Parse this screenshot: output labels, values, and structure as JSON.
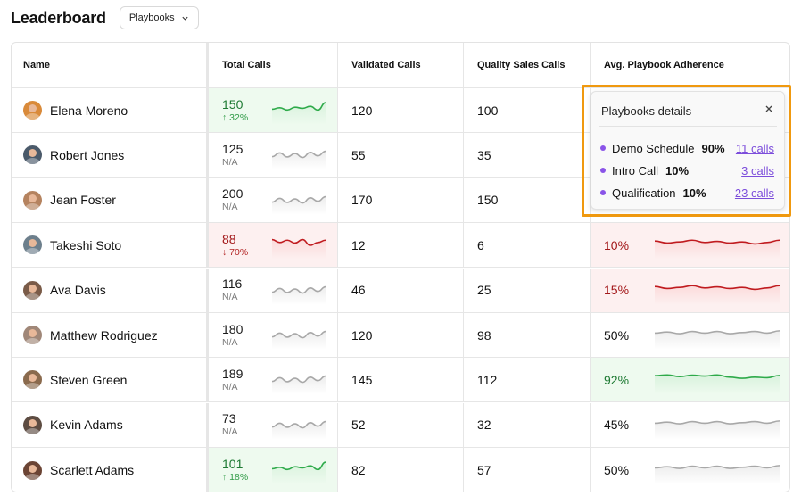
{
  "header": {
    "title": "Leaderboard",
    "dropdown_label": "Playbooks"
  },
  "table": {
    "columns": [
      "Name",
      "Total Calls",
      "Validated Calls",
      "Quality Sales Calls",
      "Avg. Playbook Adherence"
    ],
    "rows": [
      {
        "name": "Elena Moreno",
        "avatar_color": "#d98a3a",
        "total": "150",
        "total_sub": "↑ 32%",
        "total_status": "green",
        "validated": "120",
        "quality": "100",
        "adherence": "",
        "adh_status": "none"
      },
      {
        "name": "Robert Jones",
        "avatar_color": "#4b5a6a",
        "total": "125",
        "total_sub": "N/A",
        "total_status": "neutral",
        "validated": "55",
        "quality": "35",
        "adherence": "",
        "adh_status": "none"
      },
      {
        "name": "Jean Foster",
        "avatar_color": "#b5835f",
        "total": "200",
        "total_sub": "N/A",
        "total_status": "neutral",
        "validated": "170",
        "quality": "150",
        "adherence": "",
        "adh_status": "none"
      },
      {
        "name": "Takeshi Soto",
        "avatar_color": "#6d7f8c",
        "total": "88",
        "total_sub": "↓ 70%",
        "total_status": "red",
        "validated": "12",
        "quality": "6",
        "adherence": "10%",
        "adh_status": "red"
      },
      {
        "name": "Ava Davis",
        "avatar_color": "#7a5b48",
        "total": "116",
        "total_sub": "N/A",
        "total_status": "neutral",
        "validated": "46",
        "quality": "25",
        "adherence": "15%",
        "adh_status": "red"
      },
      {
        "name": "Matthew Rodriguez",
        "avatar_color": "#a08778",
        "total": "180",
        "total_sub": "N/A",
        "total_status": "neutral",
        "validated": "120",
        "quality": "98",
        "adherence": "50%",
        "adh_status": "neutral"
      },
      {
        "name": "Steven Green",
        "avatar_color": "#8a6a4d",
        "total": "189",
        "total_sub": "N/A",
        "total_status": "neutral",
        "validated": "145",
        "quality": "112",
        "adherence": "92%",
        "adh_status": "green"
      },
      {
        "name": "Kevin Adams",
        "avatar_color": "#5d4c42",
        "total": "73",
        "total_sub": "N/A",
        "total_status": "neutral",
        "validated": "52",
        "quality": "32",
        "adherence": "45%",
        "adh_status": "neutral"
      },
      {
        "name": "Scarlett Adams",
        "avatar_color": "#6b4434",
        "total": "101",
        "total_sub": "↑ 18%",
        "total_status": "green",
        "validated": "82",
        "quality": "57",
        "adherence": "50%",
        "adh_status": "neutral"
      }
    ]
  },
  "popover": {
    "title": "Playbooks details",
    "close_icon": "close-icon",
    "items": [
      {
        "name": "Demo Schedule",
        "pct": "90%",
        "calls": "11 calls"
      },
      {
        "name": "Intro Call",
        "pct": "10%",
        "calls": "3 calls"
      },
      {
        "name": "Qualification",
        "pct": "10%",
        "calls": "23 calls"
      }
    ]
  },
  "colors": {
    "green_line": "#2eaa4a",
    "green_fill": "#d8f2dc",
    "red_line": "#c01b1f",
    "red_fill": "#fbdada",
    "gray_line": "#a8a8a8",
    "gray_fill": "#ececec",
    "link": "#7c4ddb",
    "highlight": "#f0990f"
  }
}
